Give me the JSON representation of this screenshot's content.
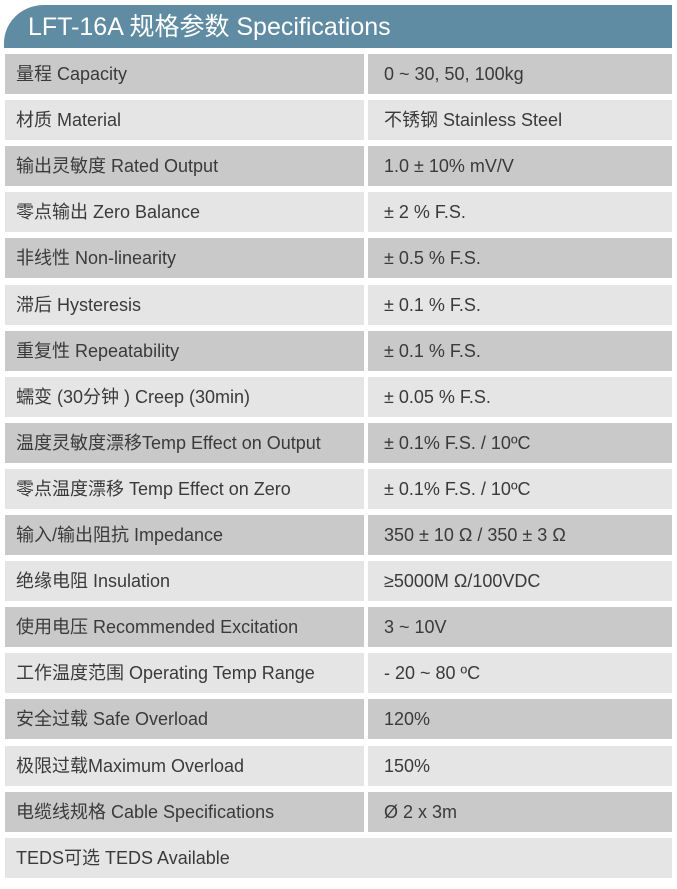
{
  "title": "LFT-16A 规格参数 Specifications",
  "rows": [
    {
      "label": "量程 Capacity",
      "value": "0 ~ 30, 50, 100kg"
    },
    {
      "label": "材质 Material",
      "value": "不锈钢 Stainless Steel"
    },
    {
      "label": "输出灵敏度 Rated Output",
      "value": "1.0 ± 10% mV/V"
    },
    {
      "label": "零点输出  Zero Balance",
      "value": "± 2 % F.S."
    },
    {
      "label": "非线性 Non-linearity",
      "value": "± 0.5 % F.S."
    },
    {
      "label": "滞后 Hysteresis",
      "value": "± 0.1 % F.S."
    },
    {
      "label": "重复性 Repeatability",
      "value": "± 0.1 % F.S."
    },
    {
      "label": "蠕变 (30分钟 ) Creep (30min)",
      "value": "± 0.05 % F.S."
    },
    {
      "label": "温度灵敏度漂移Temp Effect on Output",
      "value": "± 0.1% F.S. / 10ºC"
    },
    {
      "label": "零点温度漂移 Temp Effect on Zero",
      "value": "± 0.1% F.S. / 10ºC"
    },
    {
      "label": "输入/输出阻抗 Impedance",
      "value": "350 ± 10 Ω  / 350 ± 3 Ω"
    },
    {
      "label": "绝缘电阻  Insulation",
      "value": "≥5000M Ω/100VDC"
    },
    {
      "label": "使用电压 Recommended Excitation",
      "value": "3 ~ 10V"
    },
    {
      "label": "工作温度范围 Operating Temp  Range",
      "value": "- 20 ~ 80 ºC"
    },
    {
      "label": "安全过载 Safe Overload",
      "value": "120%"
    },
    {
      "label": "极限过载Maximum Overload",
      "value": "150%"
    },
    {
      "label": "电缆线规格 Cable Specifications",
      "value": "Ø 2 x 3m"
    }
  ],
  "footer_row": "TEDS可选 TEDS Available"
}
